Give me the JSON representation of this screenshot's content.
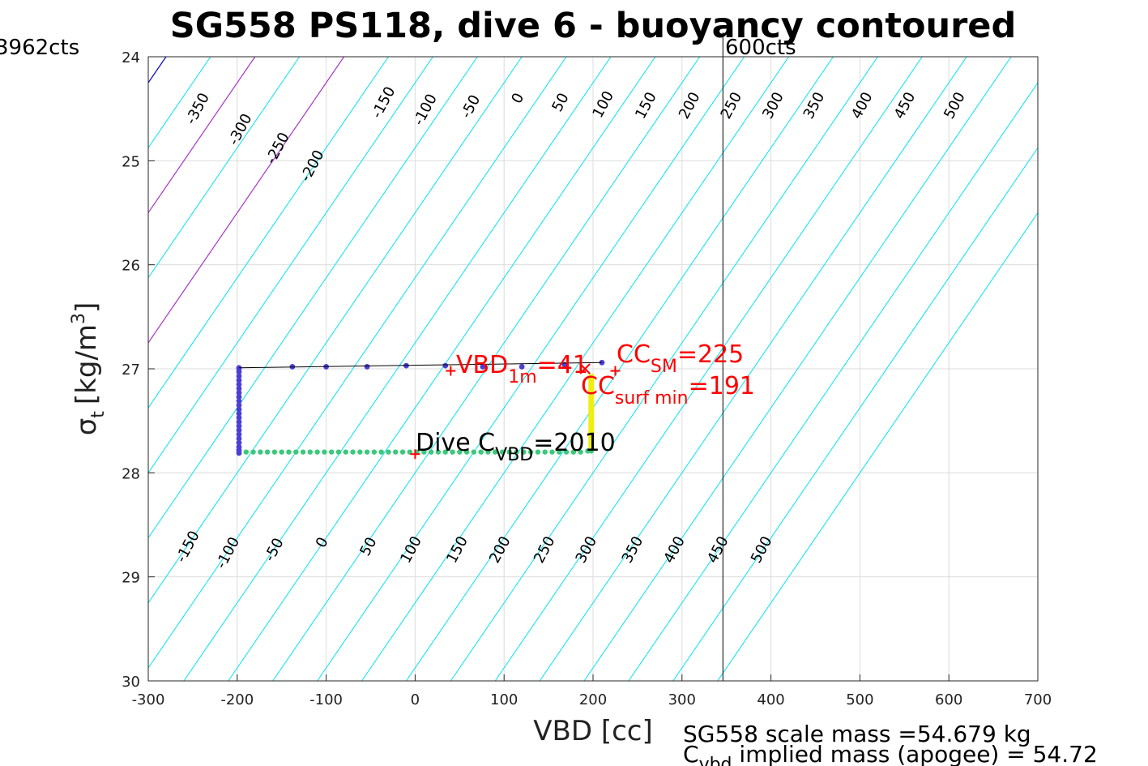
{
  "chart_data": {
    "type": "scatter",
    "title": "SG558 PS118, dive 6 - buoyancy contoured",
    "xlabel": "VBD [cc]",
    "ylabel_symbol": "σ",
    "ylabel_sub": "t",
    "ylabel_unit": "[kg/m",
    "ylabel_sup": "3",
    "ylabel_end": "]",
    "xlim": [
      -300,
      700
    ],
    "ylim": [
      24,
      30
    ],
    "y_reversed": true,
    "grid": true,
    "xticks": [
      "-300",
      "-200",
      "-100",
      "0",
      "100",
      "200",
      "300",
      "400",
      "500",
      "600",
      "700"
    ],
    "yticks": [
      "24",
      "25",
      "26",
      "27",
      "28",
      "29",
      "30"
    ],
    "corner_left": "3962cts",
    "corner_right": "600cts",
    "vbd_limit_x": 346,
    "contour": {
      "slope_cc_per_sigma": 80,
      "levels": [
        -400,
        -350,
        -300,
        -250,
        -200,
        -150,
        -100,
        -50,
        0,
        50,
        100,
        150,
        200,
        250,
        300,
        350,
        400,
        450,
        500,
        550,
        600,
        650,
        700,
        750,
        800,
        850,
        900,
        950,
        1000,
        1050,
        1100
      ],
      "zero_color": "#0000cc",
      "highlight_levels": [
        100,
        200
      ],
      "highlight_color": "#aa33cc",
      "color": "#00e5ee"
    },
    "contour_labels_top": [
      {
        "text": "-350",
        "vbd": -240,
        "sigma": 24.52
      },
      {
        "text": "-300",
        "vbd": -192,
        "sigma": 24.72
      },
      {
        "text": "-250",
        "vbd": -150,
        "sigma": 24.9
      },
      {
        "text": "-200",
        "vbd": -111,
        "sigma": 25.07
      },
      {
        "text": "-150",
        "vbd": -31,
        "sigma": 24.46
      },
      {
        "text": "-100",
        "vbd": 16,
        "sigma": 24.53
      },
      {
        "text": "-50",
        "vbd": 67,
        "sigma": 24.5
      },
      {
        "text": "0",
        "vbd": 120,
        "sigma": 24.42
      },
      {
        "text": "50",
        "vbd": 168,
        "sigma": 24.46
      },
      {
        "text": "100",
        "vbd": 216,
        "sigma": 24.48
      },
      {
        "text": "150",
        "vbd": 264,
        "sigma": 24.49
      },
      {
        "text": "200",
        "vbd": 313,
        "sigma": 24.49
      },
      {
        "text": "250",
        "vbd": 360,
        "sigma": 24.49
      },
      {
        "text": "300",
        "vbd": 407,
        "sigma": 24.49
      },
      {
        "text": "350",
        "vbd": 453,
        "sigma": 24.49
      },
      {
        "text": "400",
        "vbd": 507,
        "sigma": 24.49
      },
      {
        "text": "450",
        "vbd": 555,
        "sigma": 24.49
      },
      {
        "text": "500",
        "vbd": 611,
        "sigma": 24.49
      }
    ],
    "contour_labels_bottom": [
      {
        "text": "-150",
        "vbd": -251,
        "sigma": 28.73
      },
      {
        "text": "-100",
        "vbd": -206,
        "sigma": 28.79
      },
      {
        "text": "-50",
        "vbd": -154,
        "sigma": 28.76
      },
      {
        "text": "0",
        "vbd": -100,
        "sigma": 28.69
      },
      {
        "text": "50",
        "vbd": -48,
        "sigma": 28.73
      },
      {
        "text": "100",
        "vbd": 0,
        "sigma": 28.76
      },
      {
        "text": "150",
        "vbd": 52,
        "sigma": 28.76
      },
      {
        "text": "200",
        "vbd": 100,
        "sigma": 28.76
      },
      {
        "text": "250",
        "vbd": 150,
        "sigma": 28.76
      },
      {
        "text": "300",
        "vbd": 197,
        "sigma": 28.76
      },
      {
        "text": "350",
        "vbd": 249,
        "sigma": 28.76
      },
      {
        "text": "400",
        "vbd": 296,
        "sigma": 28.76
      },
      {
        "text": "450",
        "vbd": 345,
        "sigma": 28.76
      },
      {
        "text": "500",
        "vbd": 394,
        "sigma": 28.76
      }
    ],
    "series": [
      {
        "color": "#4a3fd4",
        "vbd": [
          -198,
          -198,
          -198,
          -198,
          -198,
          -198,
          -198,
          -198,
          -198,
          -198,
          -198,
          -198,
          -198,
          -198,
          -198,
          -198,
          -198,
          -198,
          -198,
          -198,
          -198,
          -198,
          -198,
          -138,
          -100,
          -54,
          -10,
          34,
          76,
          120,
          168,
          210
        ],
        "sigma": [
          27.0,
          27.03,
          27.07,
          27.11,
          27.15,
          27.19,
          27.23,
          27.27,
          27.31,
          27.35,
          27.39,
          27.43,
          27.47,
          27.51,
          27.55,
          27.59,
          27.63,
          27.67,
          27.71,
          27.75,
          27.78,
          27.81,
          26.99,
          26.98,
          26.98,
          26.98,
          26.97,
          26.97,
          26.98,
          26.98,
          26.96,
          26.94
        ]
      },
      {
        "color": "#3cc87a",
        "vbd": [
          -198,
          -190,
          -182,
          -174,
          -166,
          -158,
          -150,
          -142,
          -134,
          -126,
          -118,
          -110,
          -102,
          -94,
          -86,
          -78,
          -70,
          -62,
          -54,
          -46,
          -38,
          -30,
          -22,
          -14,
          -6,
          2,
          10,
          18,
          26,
          34,
          42,
          50,
          58,
          66,
          74,
          82,
          90,
          98,
          106,
          114,
          122,
          130,
          138,
          146,
          154,
          162,
          170,
          178,
          186,
          194,
          198
        ],
        "sigma": [
          27.8,
          27.8,
          27.8,
          27.8,
          27.8,
          27.8,
          27.8,
          27.8,
          27.8,
          27.8,
          27.8,
          27.8,
          27.8,
          27.8,
          27.8,
          27.8,
          27.8,
          27.8,
          27.8,
          27.8,
          27.8,
          27.8,
          27.8,
          27.8,
          27.8,
          27.8,
          27.8,
          27.8,
          27.8,
          27.8,
          27.8,
          27.8,
          27.8,
          27.8,
          27.8,
          27.8,
          27.8,
          27.8,
          27.8,
          27.8,
          27.8,
          27.8,
          27.8,
          27.8,
          27.8,
          27.8,
          27.8,
          27.8,
          27.8,
          27.79,
          27.79
        ]
      },
      {
        "color": "#eeee11",
        "vbd": [
          198,
          198,
          198,
          198,
          198,
          198,
          198
        ],
        "sigma": [
          27.05,
          27.15,
          27.3,
          27.45,
          27.6,
          27.72,
          27.78
        ]
      }
    ],
    "fit_line": {
      "color": "#000000",
      "vbd": [
        -198,
        210
      ],
      "sigma": [
        26.99,
        26.94
      ]
    },
    "markers": [
      {
        "symbol": "+",
        "color": "#ff0000",
        "vbd": 40,
        "sigma": 27.02
      },
      {
        "symbol": "x",
        "color": "#ff0000",
        "vbd": 191,
        "sigma": 27.0
      },
      {
        "symbol": "+",
        "color": "#ff0000",
        "vbd": 225,
        "sigma": 27.02
      },
      {
        "symbol": "+",
        "color": "#ff0000",
        "vbd": 0,
        "sigma": 27.82
      }
    ],
    "annotations": {
      "vbd1m": {
        "main": "VBD",
        "sub": "1m",
        "value": "=41"
      },
      "ccsm": {
        "main": "CC",
        "sub": "SM",
        "value": "=225"
      },
      "ccsurf": {
        "main": "CC",
        "sub": "surf min",
        "value": "=191"
      },
      "dive": {
        "main": "Dive C",
        "sub": "VBD",
        "value": "=2010"
      }
    }
  },
  "footer": {
    "line1": "SG558 scale mass =54.679 kg",
    "line2_main": "C",
    "line2_sub": "vbd",
    "line2_rest": " implied mass (apogee) = 54.72"
  }
}
